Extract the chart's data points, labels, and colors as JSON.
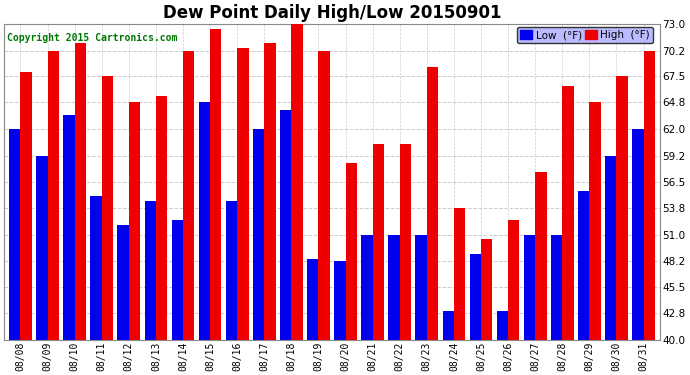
{
  "title": "Dew Point Daily High/Low 20150901",
  "copyright": "Copyright 2015 Cartronics.com",
  "dates": [
    "08/08",
    "08/09",
    "08/10",
    "08/11",
    "08/12",
    "08/13",
    "08/14",
    "08/15",
    "08/16",
    "08/17",
    "08/18",
    "08/19",
    "08/20",
    "08/21",
    "08/22",
    "08/23",
    "08/24",
    "08/25",
    "08/26",
    "08/27",
    "08/28",
    "08/29",
    "08/30",
    "08/31"
  ],
  "high": [
    68.0,
    70.2,
    71.0,
    67.5,
    64.8,
    65.5,
    70.2,
    72.5,
    70.5,
    71.0,
    73.0,
    70.2,
    58.5,
    60.5,
    60.5,
    68.5,
    53.8,
    50.5,
    52.5,
    57.5,
    66.5,
    64.8,
    67.5,
    70.2
  ],
  "low": [
    62.0,
    59.2,
    63.5,
    55.0,
    52.0,
    54.5,
    52.5,
    64.8,
    54.5,
    62.0,
    64.0,
    48.5,
    48.2,
    51.0,
    51.0,
    51.0,
    43.0,
    49.0,
    43.0,
    51.0,
    51.0,
    55.5,
    59.2,
    62.0
  ],
  "ymin": 40.0,
  "ylim": [
    40.0,
    73.0
  ],
  "yticks": [
    40.0,
    42.8,
    45.5,
    48.2,
    51.0,
    53.8,
    56.5,
    59.2,
    62.0,
    64.8,
    67.5,
    70.2,
    73.0
  ],
  "bar_width": 0.42,
  "low_color": "#0000ee",
  "high_color": "#ee0000",
  "background_color": "#ffffff",
  "grid_color": "#cccccc",
  "title_fontsize": 12,
  "copyright_color": "#007700",
  "legend_low_label": "Low  (°F)",
  "legend_high_label": "High  (°F)"
}
